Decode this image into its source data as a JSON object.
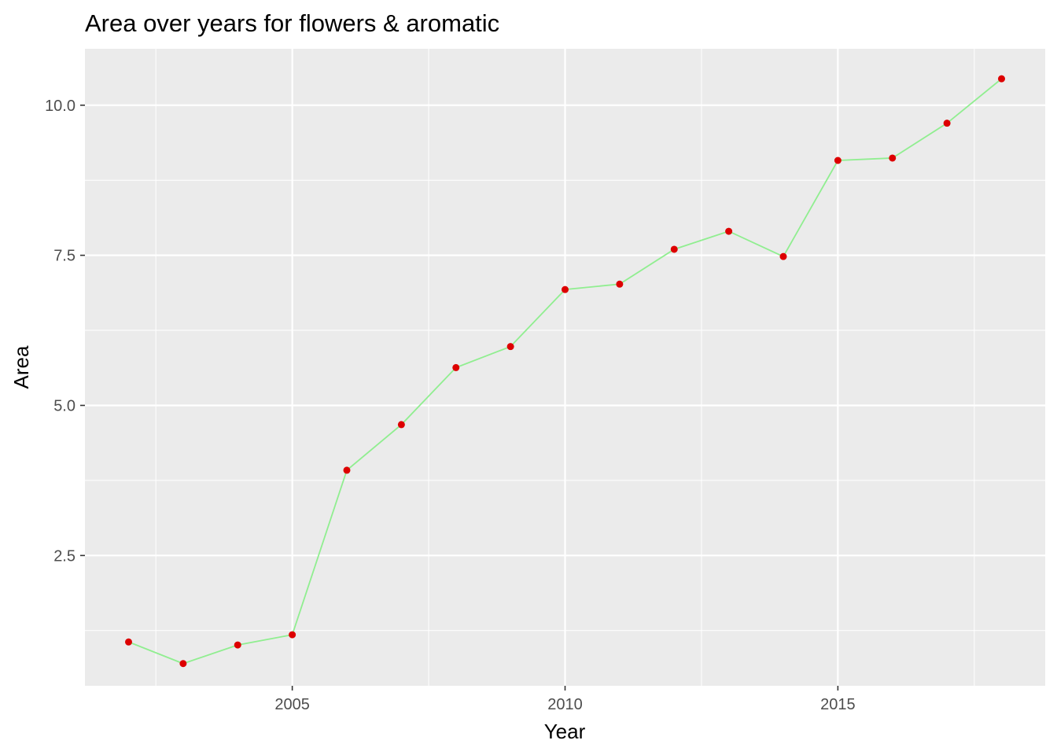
{
  "chart_data": {
    "type": "line",
    "title": "Area over years for flowers & aromatic",
    "xlabel": "Year",
    "ylabel": "Area",
    "xlim": [
      2001.2,
      2018.8
    ],
    "ylim": [
      0.33,
      10.94
    ],
    "x_ticks": [
      {
        "value": 2005,
        "label": "2005"
      },
      {
        "value": 2010,
        "label": "2010"
      },
      {
        "value": 2015,
        "label": "2015"
      }
    ],
    "x_minor_ticks": [
      2002.5,
      2007.5,
      2012.5,
      2017.5
    ],
    "y_ticks": [
      {
        "value": 2.5,
        "label": "2.5"
      },
      {
        "value": 5.0,
        "label": "5.0"
      },
      {
        "value": 7.5,
        "label": "7.5"
      },
      {
        "value": 10.0,
        "label": "10.0"
      }
    ],
    "y_minor_ticks": [
      1.25,
      3.75,
      6.25,
      8.75
    ],
    "grid": true,
    "legend": "none",
    "series": [
      {
        "name": "Area",
        "line_color": "#90ee90",
        "point_color": "#dd0000",
        "x": [
          2002,
          2003,
          2004,
          2005,
          2006,
          2007,
          2008,
          2009,
          2010,
          2011,
          2012,
          2013,
          2014,
          2015,
          2016,
          2017,
          2018
        ],
        "values": [
          1.06,
          0.7,
          1.01,
          1.18,
          3.92,
          4.68,
          5.63,
          5.98,
          6.93,
          7.02,
          7.6,
          7.9,
          7.48,
          9.08,
          9.12,
          9.7,
          10.44
        ]
      }
    ]
  }
}
